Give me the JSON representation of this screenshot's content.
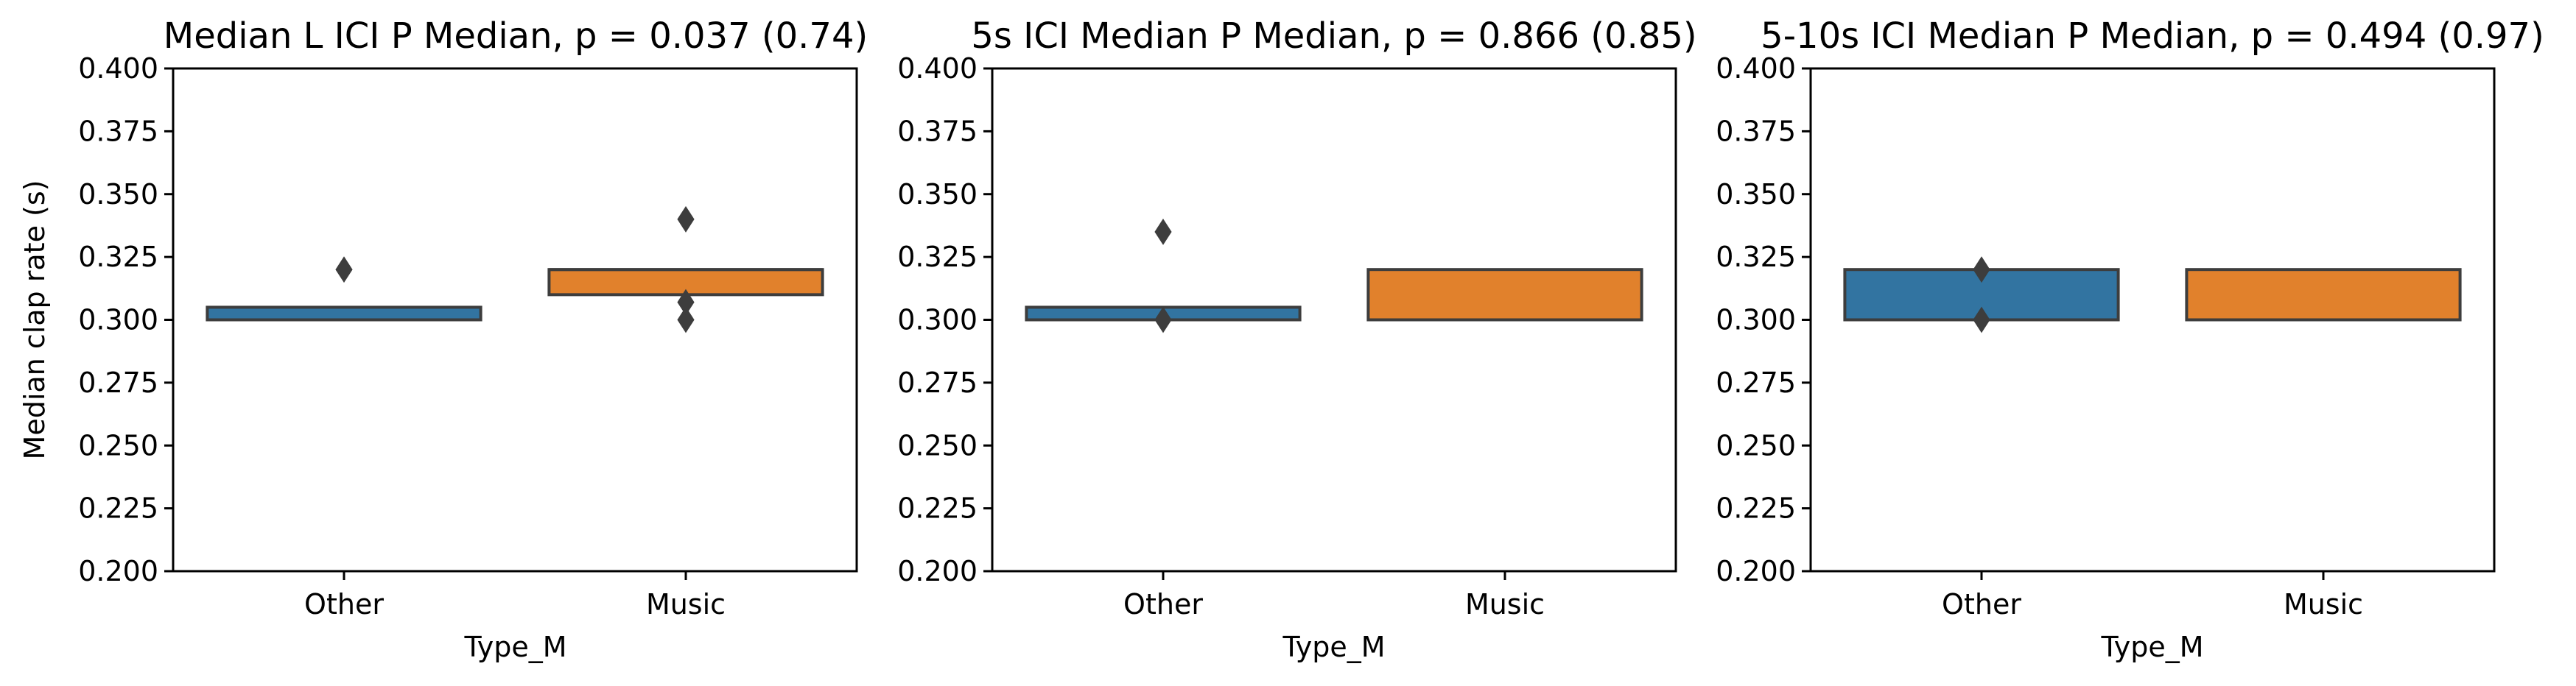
{
  "chart_data": [
    {
      "type": "boxplot",
      "title": "Median L ICI P Median, p = 0.037 (0.74)",
      "xlabel": "Type_M",
      "ylabel": "Median clap rate (s)",
      "ylim": [
        0.2,
        0.4
      ],
      "yticks": [
        "0.200",
        "0.225",
        "0.250",
        "0.275",
        "0.300",
        "0.325",
        "0.350",
        "0.375",
        "0.400"
      ],
      "grid": false,
      "categories": [
        "Other",
        "Music"
      ],
      "boxes": [
        {
          "category": "Other",
          "q1": 0.3,
          "median": 0.3,
          "q3": 0.305,
          "whisker_low": 0.3,
          "whisker_high": 0.305,
          "outliers": [
            0.32
          ],
          "color": "#3274a1"
        },
        {
          "category": "Music",
          "q1": 0.31,
          "median": 0.32,
          "q3": 0.32,
          "whisker_low": 0.31,
          "whisker_high": 0.32,
          "outliers": [
            0.34,
            0.3,
            0.307
          ],
          "color": "#e1812c"
        }
      ]
    },
    {
      "type": "boxplot",
      "title": "5s ICI Median P Median, p = 0.866 (0.85)",
      "xlabel": "Type_M",
      "ylabel": "",
      "ylim": [
        0.2,
        0.4
      ],
      "yticks": [
        "0.200",
        "0.225",
        "0.250",
        "0.275",
        "0.300",
        "0.325",
        "0.350",
        "0.375",
        "0.400"
      ],
      "grid": false,
      "categories": [
        "Other",
        "Music"
      ],
      "boxes": [
        {
          "category": "Other",
          "q1": 0.3,
          "median": 0.3,
          "q3": 0.305,
          "whisker_low": 0.3,
          "whisker_high": 0.305,
          "outliers": [
            0.335,
            0.3
          ],
          "color": "#3274a1"
        },
        {
          "category": "Music",
          "q1": 0.3,
          "median": 0.3,
          "q3": 0.32,
          "whisker_low": 0.3,
          "whisker_high": 0.32,
          "outliers": [],
          "color": "#e1812c"
        }
      ]
    },
    {
      "type": "boxplot",
      "title": "5-10s ICI Median P Median, p = 0.494 (0.97)",
      "xlabel": "Type_M",
      "ylabel": "",
      "ylim": [
        0.2,
        0.4
      ],
      "yticks": [
        "0.200",
        "0.225",
        "0.250",
        "0.275",
        "0.300",
        "0.325",
        "0.350",
        "0.375",
        "0.400"
      ],
      "grid": false,
      "categories": [
        "Other",
        "Music"
      ],
      "boxes": [
        {
          "category": "Other",
          "q1": 0.3,
          "median": 0.3,
          "q3": 0.32,
          "whisker_low": 0.3,
          "whisker_high": 0.32,
          "outliers": [
            0.32,
            0.3
          ],
          "color": "#3274a1"
        },
        {
          "category": "Music",
          "q1": 0.3,
          "median": 0.3,
          "q3": 0.32,
          "whisker_low": 0.3,
          "whisker_high": 0.32,
          "outliers": [],
          "color": "#e1812c"
        }
      ]
    }
  ],
  "style": {
    "edge_color": "#3d3d3d",
    "axis_color": "#000000",
    "background": "#ffffff"
  }
}
